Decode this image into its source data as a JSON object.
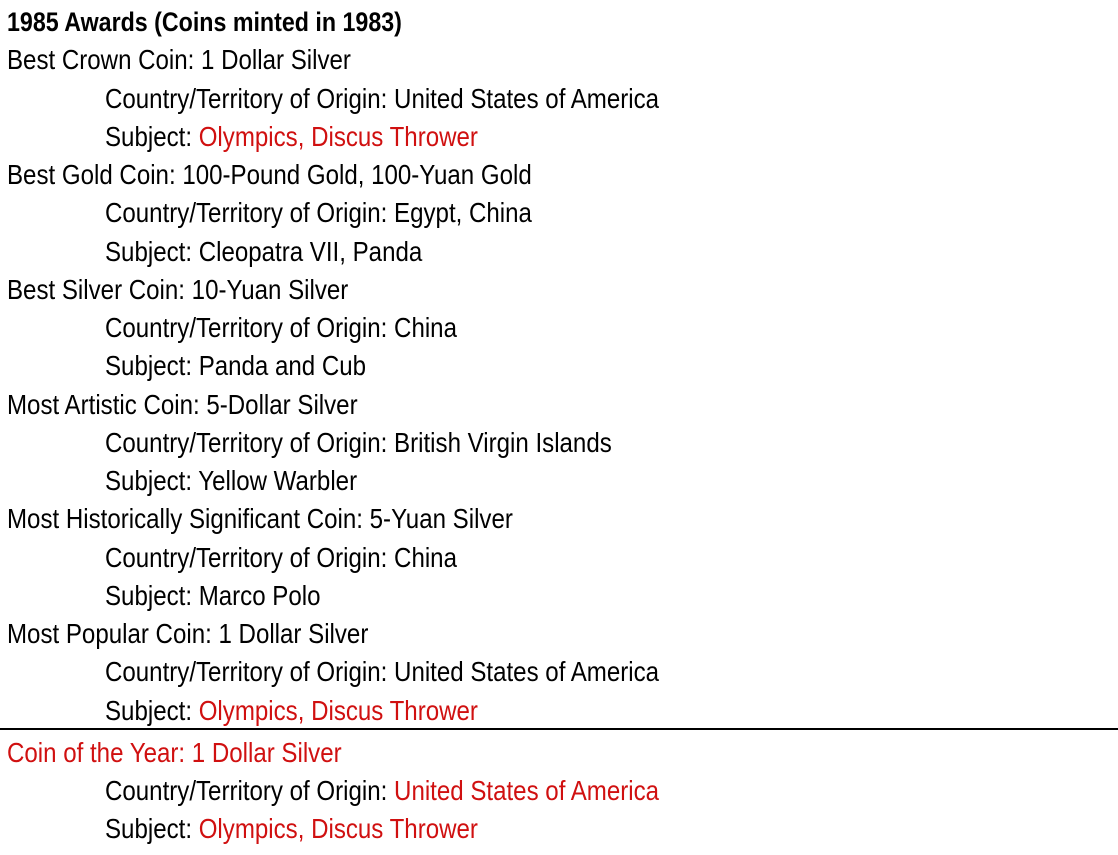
{
  "title": "1985 Awards (Coins minted in 1983)",
  "labels": {
    "country": "Country/Territory of Origin: ",
    "subject": "Subject: "
  },
  "colors": {
    "highlight": "#d01010",
    "text": "#000000"
  },
  "awards": [
    {
      "category": "Best Crown Coin: ",
      "coin": "1 Dollar Silver",
      "country": "United States of America",
      "subject": "Olympics, Discus Thrower",
      "category_red": false,
      "country_red": false,
      "subject_red": true
    },
    {
      "category": "Best Gold Coin: ",
      "coin": "100-Pound Gold, 100-Yuan Gold",
      "country": "Egypt, China",
      "subject": "Cleopatra VII, Panda",
      "category_red": false,
      "country_red": false,
      "subject_red": false
    },
    {
      "category": "Best Silver Coin: ",
      "coin": "10-Yuan Silver",
      "country": "China",
      "subject": "Panda and Cub",
      "category_red": false,
      "country_red": false,
      "subject_red": false
    },
    {
      "category": "Most Artistic Coin: ",
      "coin": "5-Dollar Silver",
      "country": "British Virgin Islands",
      "subject": "Yellow Warbler",
      "category_red": false,
      "country_red": false,
      "subject_red": false
    },
    {
      "category": "Most Historically Significant Coin: ",
      "coin": "5-Yuan Silver",
      "country": "China",
      "subject": "Marco Polo",
      "category_red": false,
      "country_red": false,
      "subject_red": false
    },
    {
      "category": "Most Popular Coin: ",
      "coin": "1 Dollar Silver",
      "country": "United States of America",
      "subject": "Olympics, Discus Thrower",
      "category_red": false,
      "country_red": false,
      "subject_red": true
    },
    {
      "category": "Coin of the Year: ",
      "coin": "1 Dollar Silver",
      "country": "United States of America",
      "subject": "Olympics, Discus Thrower",
      "category_red": true,
      "country_red": true,
      "subject_red": true
    }
  ]
}
